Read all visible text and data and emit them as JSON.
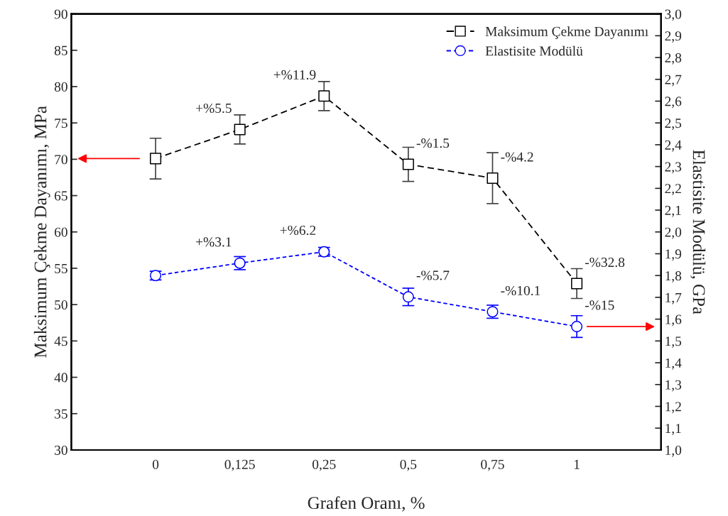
{
  "chart_data": {
    "type": "line",
    "xlabel": "Grafen Oranı, %",
    "ylabel": "Maksimum Çekme Dayanımı, MPa",
    "y2label": "Elastisite Modülü, GPa",
    "categories": [
      "0",
      "0,125",
      "0,25",
      "0,5",
      "0,75",
      "1"
    ],
    "series": [
      {
        "name": "Maksimum Çekme Dayanımı",
        "color": "#000000",
        "marker": "square",
        "line_style": "dashed",
        "values": [
          70.1,
          74.1,
          78.7,
          69.3,
          67.4,
          52.9
        ],
        "errors": [
          2.8,
          2.0,
          2.0,
          2.35,
          3.5,
          2.05
        ]
      },
      {
        "name": "Elastisite Modülü",
        "color": "#0000ff",
        "marker": "circle",
        "line_style": "dashed",
        "axis": "y2",
        "values": [
          1.8,
          1.857,
          1.909,
          1.702,
          1.634,
          1.566
        ],
        "errors": [
          0.02,
          0.03,
          0.02,
          0.04,
          0.03,
          0.05
        ]
      }
    ],
    "annotations": [
      {
        "text": "+%5.5",
        "x": "0,125",
        "y": 74.1
      },
      {
        "text": "+%11.9",
        "x": "0,25",
        "y": 78.7
      },
      {
        "text": "-%1.5",
        "x": "0,5",
        "y": 69.3
      },
      {
        "text": "-%4.2",
        "x": "0,75",
        "y": 67.4
      },
      {
        "text": "-%32.8",
        "x": "1",
        "y": 52.9
      },
      {
        "text": "+%3.1",
        "x": "0,125",
        "y": 55.7
      },
      {
        "text": "+%6.2",
        "x": "0,25",
        "y": 57.3
      },
      {
        "text": "-%5.7",
        "x": "0,5",
        "y": 51.1
      },
      {
        "text": "-%10.1",
        "x": "0,75",
        "y": 49.0
      },
      {
        "text": "-%15",
        "x": "1",
        "y": 47.0
      }
    ],
    "ylim": [
      30,
      90
    ],
    "yticks": [
      30,
      35,
      40,
      45,
      50,
      55,
      60,
      65,
      70,
      75,
      80,
      85,
      90
    ],
    "y2lim": [
      1.0,
      3.0
    ],
    "y2ticks": [
      {
        "value": 1.0,
        "label": "1,0"
      },
      {
        "value": 1.1,
        "label": "1,1"
      },
      {
        "value": 1.2,
        "label": "1,2"
      },
      {
        "value": 1.3,
        "label": "1,3"
      },
      {
        "value": 1.4,
        "label": "1,4"
      },
      {
        "value": 1.5,
        "label": "1,5"
      },
      {
        "value": 1.6,
        "label": "1,6"
      },
      {
        "value": 1.7,
        "label": "1,7"
      },
      {
        "value": 1.8,
        "label": "1,8"
      },
      {
        "value": 1.9,
        "label": "1,9"
      },
      {
        "value": 2.0,
        "label": "2,0"
      },
      {
        "value": 2.1,
        "label": "2,1"
      },
      {
        "value": 2.2,
        "label": "2,2"
      },
      {
        "value": 2.3,
        "label": "2,3"
      },
      {
        "value": 2.4,
        "label": "2,4"
      },
      {
        "value": 2.5,
        "label": "2,5"
      },
      {
        "value": 2.6,
        "label": "2,6"
      },
      {
        "value": 2.7,
        "label": "2,7"
      },
      {
        "value": 2.8,
        "label": "2,8"
      },
      {
        "value": 2.9,
        "label": "2,9"
      },
      {
        "value": 3.0,
        "label": "3,0"
      }
    ],
    "grid": false,
    "legend": "top right"
  }
}
